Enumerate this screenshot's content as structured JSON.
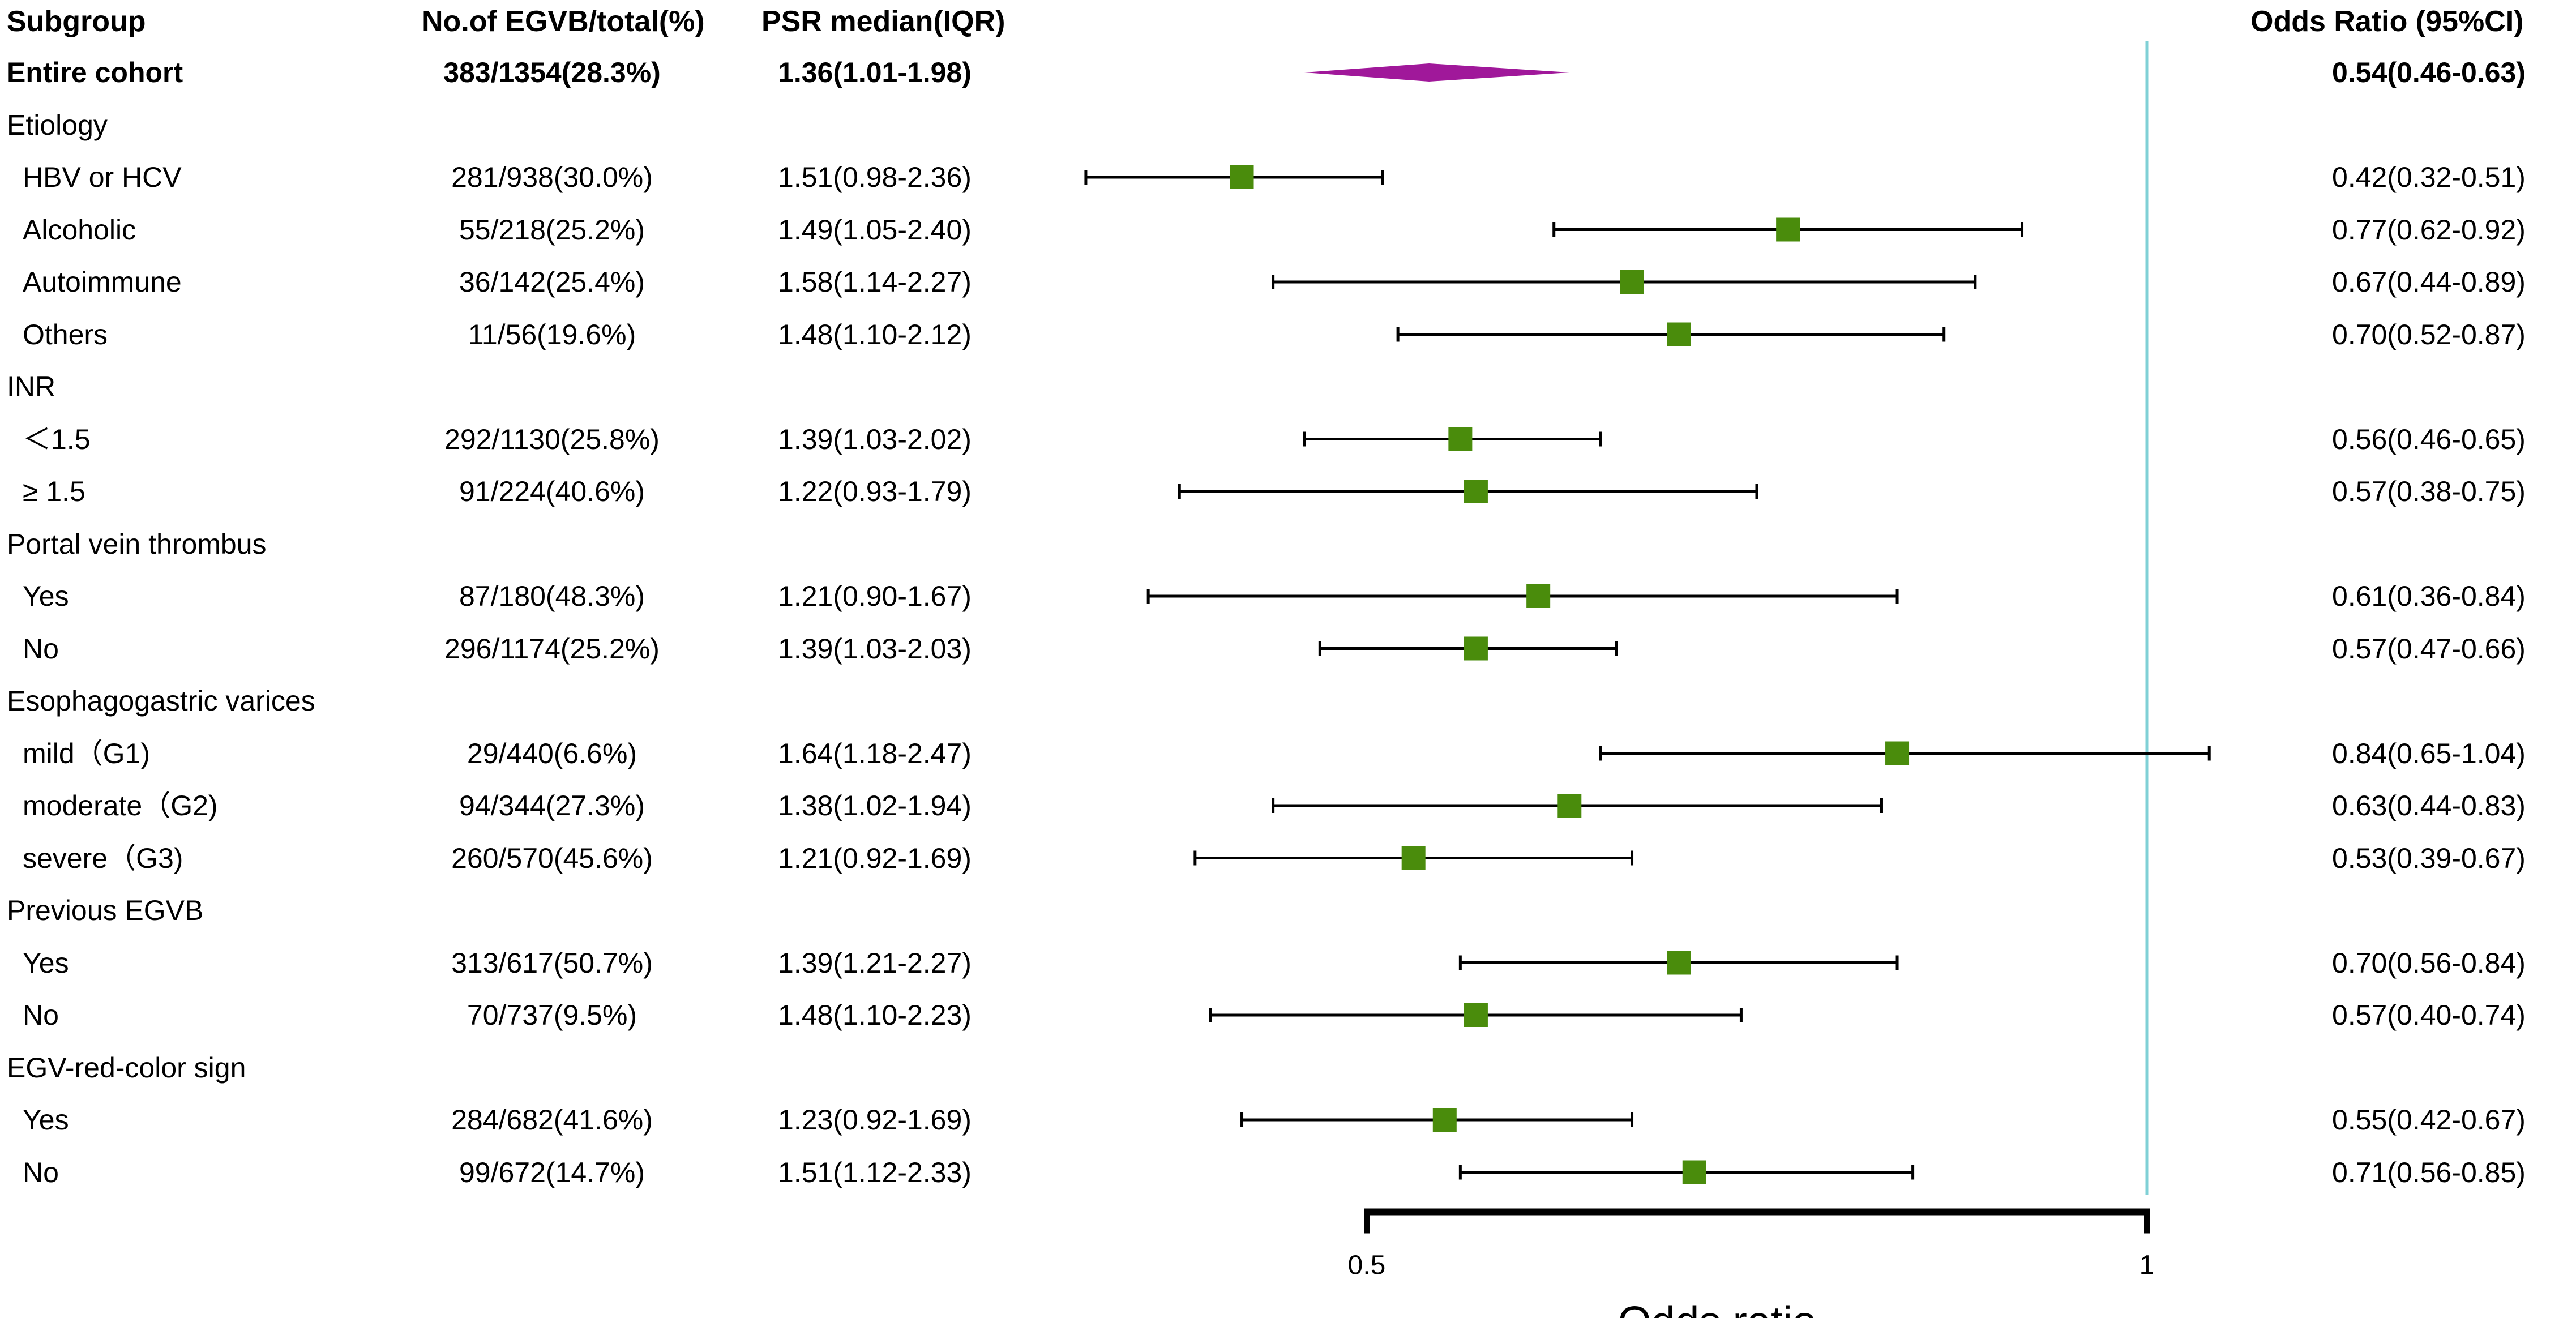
{
  "chart_data": {
    "type": "forest",
    "title": "",
    "xlabel": "Odds ratio",
    "xlim": [
      0.33,
      1.05
    ],
    "ticks": [
      0.5,
      1
    ],
    "tick_labels": [
      "0.5",
      "1"
    ],
    "reference_line": 1,
    "colors": {
      "marker": "#4a8c0c",
      "diamond": "#a0189a",
      "refline": "#7fd0d6",
      "line": "#000000"
    },
    "headers": {
      "subgroup": "Subgroup",
      "count": "No.of EGVB/total(%)",
      "psr": "PSR median(IQR)",
      "or": "Odds Ratio (95%CI)"
    },
    "rows": [
      {
        "label": "Entire cohort",
        "kind": "overall",
        "count": "383/1354(28.3%)",
        "psr": "1.36(1.01-1.98)",
        "or_text": "0.54(0.46-0.63)",
        "or": 0.54,
        "lo": 0.46,
        "hi": 0.63
      },
      {
        "label": "Etiology",
        "kind": "group"
      },
      {
        "label": "HBV or HCV",
        "kind": "sub",
        "count": "281/938(30.0%)",
        "psr": "1.51(0.98-2.36)",
        "or_text": "0.42(0.32-0.51)",
        "or": 0.42,
        "lo": 0.32,
        "hi": 0.51
      },
      {
        "label": "Alcoholic",
        "kind": "sub",
        "count": "55/218(25.2%)",
        "psr": "1.49(1.05-2.40)",
        "or_text": "0.77(0.62-0.92)",
        "or": 0.77,
        "lo": 0.62,
        "hi": 0.92
      },
      {
        "label": "Autoimmune",
        "kind": "sub",
        "count": "36/142(25.4%)",
        "psr": "1.58(1.14-2.27)",
        "or_text": "0.67(0.44-0.89)",
        "or": 0.67,
        "lo": 0.44,
        "hi": 0.89
      },
      {
        "label": "Others",
        "kind": "sub",
        "count": "11/56(19.6%)",
        "psr": "1.48(1.10-2.12)",
        "or_text": "0.70(0.52-0.87)",
        "or": 0.7,
        "lo": 0.52,
        "hi": 0.87
      },
      {
        "label": "INR",
        "kind": "group"
      },
      {
        "label": "＜1.5",
        "kind": "sub",
        "count": "292/1130(25.8%)",
        "psr": "1.39(1.03-2.02)",
        "or_text": "0.56(0.46-0.65)",
        "or": 0.56,
        "lo": 0.46,
        "hi": 0.65
      },
      {
        "label": "≥ 1.5",
        "kind": "sub",
        "count": "91/224(40.6%)",
        "psr": "1.22(0.93-1.79)",
        "or_text": "0.57(0.38-0.75)",
        "or": 0.57,
        "lo": 0.38,
        "hi": 0.75
      },
      {
        "label": "Portal vein thrombus",
        "kind": "group"
      },
      {
        "label": "Yes",
        "kind": "sub",
        "count": "87/180(48.3%)",
        "psr": "1.21(0.90-1.67)",
        "or_text": "0.61(0.36-0.84)",
        "or": 0.61,
        "lo": 0.36,
        "hi": 0.84
      },
      {
        "label": "No",
        "kind": "sub",
        "count": "296/1174(25.2%)",
        "psr": "1.39(1.03-2.03)",
        "or_text": "0.57(0.47-0.66)",
        "or": 0.57,
        "lo": 0.47,
        "hi": 0.66
      },
      {
        "label": "Esophagogastric varices",
        "kind": "group"
      },
      {
        "label": "mild（G1)",
        "kind": "sub",
        "count": "29/440(6.6%)",
        "psr": "1.64(1.18-2.47)",
        "or_text": "0.84(0.65-1.04)",
        "or": 0.84,
        "lo": 0.65,
        "hi": 1.04
      },
      {
        "label": "moderate（G2)",
        "kind": "sub",
        "count": "94/344(27.3%)",
        "psr": "1.38(1.02-1.94)",
        "or_text": "0.63(0.44-0.83)",
        "or": 0.63,
        "lo": 0.44,
        "hi": 0.83
      },
      {
        "label": "severe（G3)",
        "kind": "sub",
        "count": "260/570(45.6%)",
        "psr": "1.21(0.92-1.69)",
        "or_text": "0.53(0.39-0.67)",
        "or": 0.53,
        "lo": 0.39,
        "hi": 0.67
      },
      {
        "label": "Previous EGVB",
        "kind": "group"
      },
      {
        "label": "Yes",
        "kind": "sub",
        "count": "313/617(50.7%)",
        "psr": "1.39(1.21-2.27)",
        "or_text": "0.70(0.56-0.84)",
        "or": 0.7,
        "lo": 0.56,
        "hi": 0.84
      },
      {
        "label": "No",
        "kind": "sub",
        "count": "70/737(9.5%)",
        "psr": "1.48(1.10-2.23)",
        "or_text": "0.57(0.40-0.74)",
        "or": 0.57,
        "lo": 0.4,
        "hi": 0.74
      },
      {
        "label": "EGV-red-color sign",
        "kind": "group"
      },
      {
        "label": "Yes",
        "kind": "sub",
        "count": "284/682(41.6%)",
        "psr": "1.23(0.92-1.69)",
        "or_text": "0.55(0.42-0.67)",
        "or": 0.55,
        "lo": 0.42,
        "hi": 0.67
      },
      {
        "label": "No",
        "kind": "sub",
        "count": "99/672(14.7%)",
        "psr": "1.51(1.12-2.33)",
        "or_text": "0.71(0.56-0.85)",
        "or": 0.71,
        "lo": 0.56,
        "hi": 0.85
      }
    ]
  }
}
